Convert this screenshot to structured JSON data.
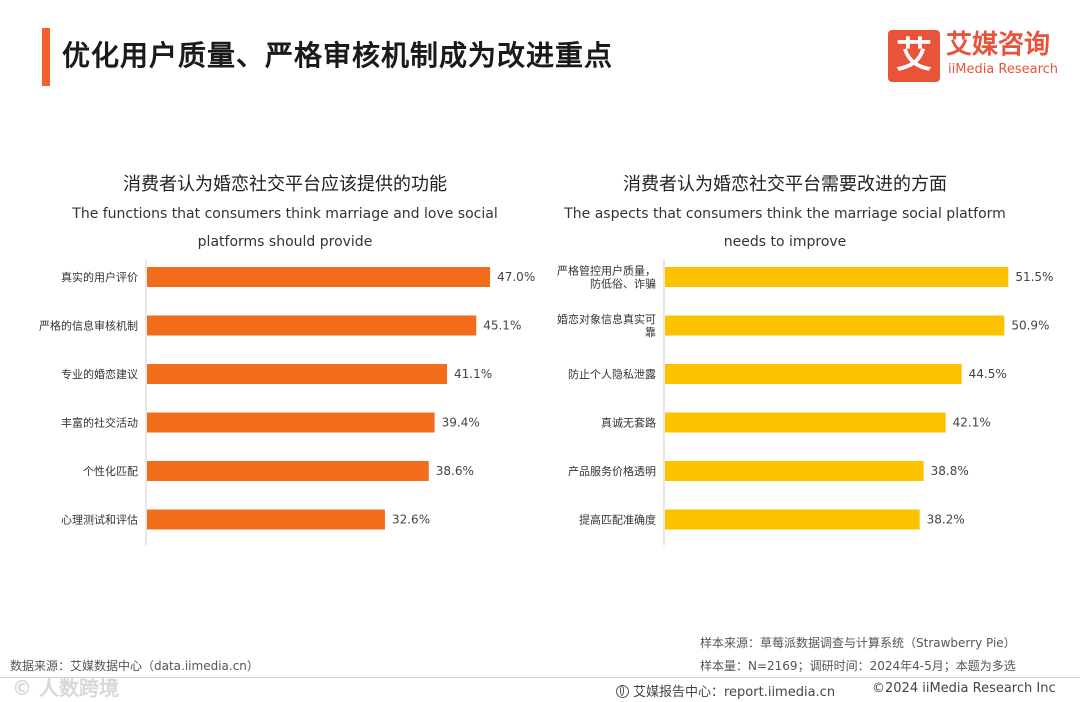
{
  "header": {
    "title": "优化用户质量、严格审核机制成为改进重点",
    "accent_color": "#f0622b"
  },
  "logo": {
    "mark": "艾",
    "cn": "艾媒咨询",
    "en": "iiMedia Research",
    "color": "#e8533a"
  },
  "chart_data": [
    {
      "type": "bar",
      "orientation": "horizontal",
      "title": "消费者认为婚恋社交平台应该提供的功能",
      "subtitle": "The functions that consumers think marriage and love social platforms should provide",
      "categories": [
        "真实的用户评价",
        "严格的信息审核机制",
        "专业的婚恋建议",
        "丰富的社交活动",
        "个性化匹配",
        "心理测试和评估"
      ],
      "values": [
        47.0,
        45.1,
        41.1,
        39.4,
        38.6,
        32.6
      ],
      "labels": [
        "47.0%",
        "45.1%",
        "41.1%",
        "39.4%",
        "38.6%",
        "32.6%"
      ],
      "unit": "%",
      "xlim": [
        0,
        50
      ],
      "color": "#f26d1b",
      "grid": false
    },
    {
      "type": "bar",
      "orientation": "horizontal",
      "title": "消费者认为婚恋社交平台需要改进的方面",
      "subtitle": "The aspects that consumers think the marriage social platform needs to improve",
      "categories": [
        [
          "严格管控用户质量，",
          "防低俗、诈骗"
        ],
        [
          "婚恋对象信息真实可",
          "靠"
        ],
        [
          "防止个人隐私泄露"
        ],
        [
          "真诚无套路"
        ],
        [
          "产品服务价格透明"
        ],
        [
          "提高匹配准确度"
        ]
      ],
      "values": [
        51.5,
        50.9,
        44.5,
        42.1,
        38.8,
        38.2
      ],
      "labels": [
        "51.5%",
        "50.9%",
        "44.5%",
        "42.1%",
        "38.8%",
        "38.2%"
      ],
      "unit": "%",
      "xlim": [
        0,
        52.5
      ],
      "color": "#fcc200",
      "grid": false
    }
  ],
  "footer": {
    "sample_source": "样本来源：草莓派数据调查与计算系统（Strawberry Pie）",
    "sample_size": "样本量：N=2169；调研时间：2024年4-5月；本题为多选",
    "data_source": "数据来源：艾媒数据中心（data.iimedia.cn）",
    "watermark": "© 人数跨境",
    "report_center": "艾媒报告中心：report.iimedia.cn",
    "copyright": "©2024  iiMedia Research Inc"
  }
}
